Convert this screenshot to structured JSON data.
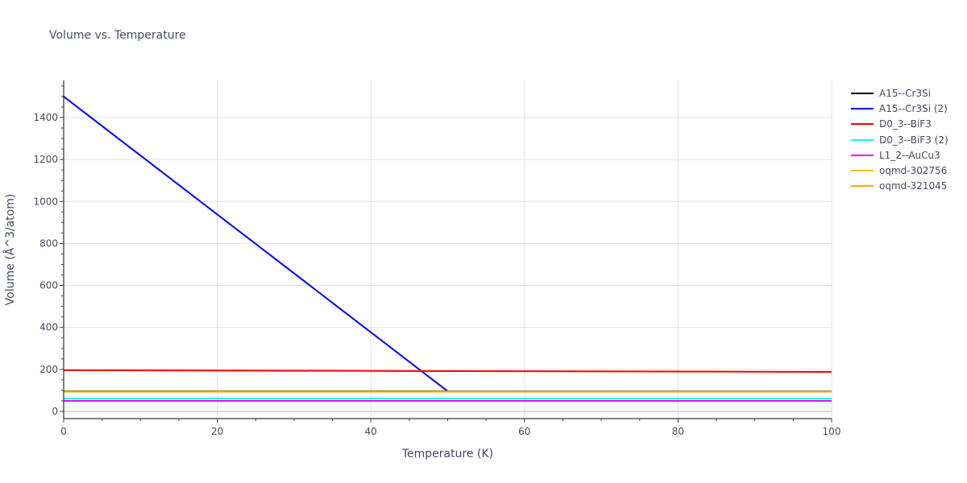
{
  "chart_data": {
    "type": "line",
    "title": "Volume vs. Temperature",
    "xlabel": "Temperature (K)",
    "ylabel": "Volume (Å^3/atom)",
    "xlim": [
      0,
      100
    ],
    "ylim": [
      -25,
      1575
    ],
    "x_ticks": [
      0,
      20,
      40,
      60,
      80,
      100
    ],
    "y_ticks": [
      0,
      200,
      400,
      600,
      800,
      1000,
      1200,
      1400
    ],
    "grid": true,
    "legend_position": "right",
    "series": [
      {
        "name": "A15--Cr3Si",
        "color": "#000000",
        "x": [
          0,
          100
        ],
        "y": [
          96,
          96
        ]
      },
      {
        "name": "A15--Cr3Si (2)",
        "color": "#0000ff",
        "x": [
          0,
          50,
          100
        ],
        "y": [
          1500,
          96,
          96
        ]
      },
      {
        "name": "D0_3--BiF3",
        "color": "#ff0000",
        "x": [
          0,
          100
        ],
        "y": [
          196,
          188
        ]
      },
      {
        "name": "D0_3--BiF3 (2)",
        "color": "#00ffff",
        "x": [
          0,
          100
        ],
        "y": [
          61,
          61
        ]
      },
      {
        "name": "L1_2--AuCu3",
        "color": "#ff00ff",
        "x": [
          0,
          100
        ],
        "y": [
          50,
          50
        ]
      },
      {
        "name": "oqmd-302756",
        "color": "#f0c020",
        "x": [
          0,
          100
        ],
        "y": [
          95,
          95
        ]
      },
      {
        "name": "oqmd-321045",
        "color": "#ffa500",
        "x": [
          0,
          100
        ],
        "y": [
          94,
          94
        ]
      }
    ]
  }
}
